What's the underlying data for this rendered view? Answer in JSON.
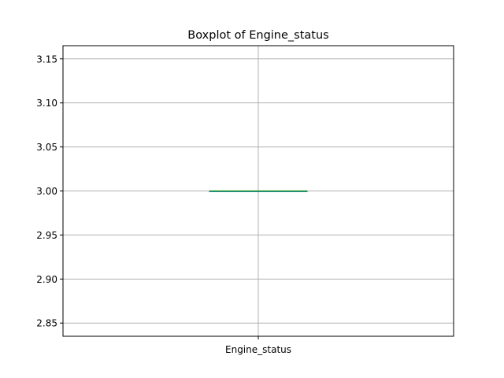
{
  "chart_data": {
    "type": "box",
    "title": "Boxplot of Engine_status",
    "categories": [
      "Engine_status"
    ],
    "boxes": [
      {
        "category": "Engine_status",
        "whisker_low": 3.0,
        "q1": 3.0,
        "median": 3.0,
        "q3": 3.0,
        "whisker_high": 3.0
      }
    ],
    "xlabel": "",
    "ylabel": "",
    "ylim": [
      2.835,
      3.165
    ],
    "yticks": [
      2.85,
      2.9,
      2.95,
      3.0,
      3.05,
      3.1,
      3.15
    ],
    "ytick_labels": [
      "2.85",
      "2.90",
      "2.95",
      "3.00",
      "3.05",
      "3.10",
      "3.15"
    ],
    "grid": true,
    "colors": {
      "box": "#1f77b4",
      "median": "#2ca02c",
      "grid": "#b0b0b0",
      "axes": "#000000"
    }
  }
}
